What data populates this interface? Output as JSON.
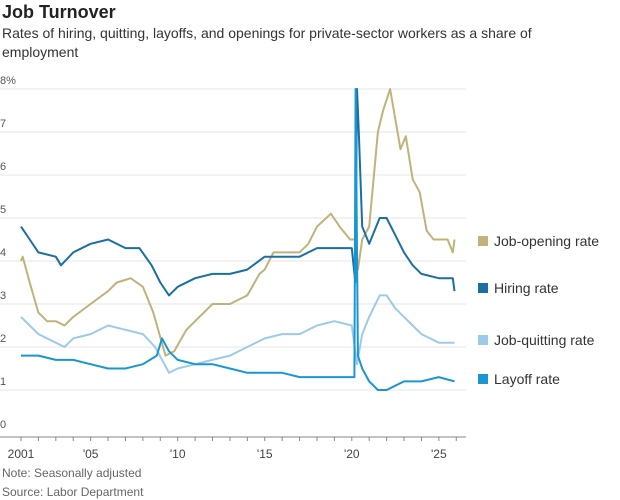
{
  "chart_data": {
    "type": "line",
    "title": "Job Turnover",
    "subtitle": "Rates of hiring, quitting, layoffs, and openings for private-sector workers as a share of employment",
    "ylabel": "%",
    "ylim": [
      0,
      8
    ],
    "yticks": [
      "0",
      "1",
      "2",
      "3",
      "4",
      "5",
      "6",
      "7",
      "8%"
    ],
    "xlim": [
      2001,
      2026.1
    ],
    "xticks": [
      {
        "value": 2001,
        "label": "2001"
      },
      {
        "value": 2005,
        "label": "'05"
      },
      {
        "value": 2010,
        "label": "'10"
      },
      {
        "value": 2015,
        "label": "'15"
      },
      {
        "value": 2020,
        "label": "'20"
      },
      {
        "value": 2025,
        "label": "'25"
      }
    ],
    "grid": true,
    "legend": "right",
    "series": [
      {
        "name": "Job-opening rate",
        "color": "#bfb37a",
        "points": [
          [
            2001,
            4.0
          ],
          [
            2001.1,
            4.1
          ],
          [
            2001.5,
            3.5
          ],
          [
            2002,
            2.8
          ],
          [
            2002.5,
            2.6
          ],
          [
            2003,
            2.6
          ],
          [
            2003.5,
            2.5
          ],
          [
            2004,
            2.7
          ],
          [
            2005,
            3.0
          ],
          [
            2006,
            3.3
          ],
          [
            2006.5,
            3.5
          ],
          [
            2007.3,
            3.6
          ],
          [
            2008,
            3.4
          ],
          [
            2008.6,
            2.8
          ],
          [
            2009.3,
            1.8
          ],
          [
            2009.8,
            1.9
          ],
          [
            2010.5,
            2.4
          ],
          [
            2011,
            2.6
          ],
          [
            2012,
            3.0
          ],
          [
            2013,
            3.0
          ],
          [
            2014,
            3.2
          ],
          [
            2014.7,
            3.7
          ],
          [
            2015,
            3.8
          ],
          [
            2015.5,
            4.2
          ],
          [
            2016,
            4.2
          ],
          [
            2017,
            4.2
          ],
          [
            2017.5,
            4.4
          ],
          [
            2018,
            4.8
          ],
          [
            2018.8,
            5.1
          ],
          [
            2019.3,
            4.8
          ],
          [
            2019.9,
            4.5
          ],
          [
            2020.2,
            4.5
          ],
          [
            2020.35,
            3.8
          ],
          [
            2020.6,
            4.5
          ],
          [
            2021,
            4.8
          ],
          [
            2021.5,
            7.0
          ],
          [
            2021.8,
            7.5
          ],
          [
            2022.2,
            8.0
          ],
          [
            2022.5,
            7.3
          ],
          [
            2022.8,
            6.6
          ],
          [
            2023.1,
            6.9
          ],
          [
            2023.5,
            5.9
          ],
          [
            2023.9,
            5.6
          ],
          [
            2024.3,
            4.7
          ],
          [
            2024.7,
            4.5
          ],
          [
            2025,
            4.5
          ],
          [
            2025.5,
            4.5
          ],
          [
            2025.8,
            4.2
          ],
          [
            2025.9,
            4.5
          ]
        ]
      },
      {
        "name": "Hiring rate",
        "color": "#1a6fa3",
        "points": [
          [
            2001,
            4.8
          ],
          [
            2001.5,
            4.5
          ],
          [
            2002,
            4.2
          ],
          [
            2003,
            4.1
          ],
          [
            2003.3,
            3.9
          ],
          [
            2004,
            4.2
          ],
          [
            2005,
            4.4
          ],
          [
            2006,
            4.5
          ],
          [
            2007,
            4.3
          ],
          [
            2007.8,
            4.3
          ],
          [
            2008.5,
            3.9
          ],
          [
            2009,
            3.5
          ],
          [
            2009.5,
            3.2
          ],
          [
            2010,
            3.4
          ],
          [
            2011,
            3.6
          ],
          [
            2012,
            3.7
          ],
          [
            2013,
            3.7
          ],
          [
            2014,
            3.8
          ],
          [
            2015,
            4.1
          ],
          [
            2016,
            4.1
          ],
          [
            2017,
            4.1
          ],
          [
            2018,
            4.3
          ],
          [
            2019,
            4.3
          ],
          [
            2020,
            4.3
          ],
          [
            2020.2,
            3.5
          ],
          [
            2020.3,
            8.0
          ],
          [
            2020.4,
            7.0
          ],
          [
            2020.6,
            4.8
          ],
          [
            2021,
            4.4
          ],
          [
            2021.6,
            5.0
          ],
          [
            2022,
            5.0
          ],
          [
            2022.5,
            4.6
          ],
          [
            2023,
            4.2
          ],
          [
            2023.5,
            3.9
          ],
          [
            2024,
            3.7
          ],
          [
            2025,
            3.6
          ],
          [
            2025.8,
            3.6
          ],
          [
            2025.9,
            3.3
          ]
        ]
      },
      {
        "name": "Job-quitting rate",
        "color": "#9ccbe9",
        "points": [
          [
            2001,
            2.7
          ],
          [
            2001.5,
            2.5
          ],
          [
            2002,
            2.3
          ],
          [
            2003,
            2.1
          ],
          [
            2003.5,
            2.0
          ],
          [
            2004,
            2.2
          ],
          [
            2005,
            2.3
          ],
          [
            2006,
            2.5
          ],
          [
            2007,
            2.4
          ],
          [
            2008,
            2.3
          ],
          [
            2008.7,
            2.0
          ],
          [
            2009.5,
            1.4
          ],
          [
            2010,
            1.5
          ],
          [
            2011,
            1.6
          ],
          [
            2012,
            1.7
          ],
          [
            2013,
            1.8
          ],
          [
            2014,
            2.0
          ],
          [
            2015,
            2.2
          ],
          [
            2016,
            2.3
          ],
          [
            2017,
            2.3
          ],
          [
            2018,
            2.5
          ],
          [
            2019,
            2.6
          ],
          [
            2020,
            2.5
          ],
          [
            2020.3,
            1.6
          ],
          [
            2020.6,
            2.3
          ],
          [
            2021,
            2.7
          ],
          [
            2021.6,
            3.2
          ],
          [
            2022,
            3.2
          ],
          [
            2022.5,
            2.9
          ],
          [
            2023,
            2.7
          ],
          [
            2023.5,
            2.5
          ],
          [
            2024,
            2.3
          ],
          [
            2025,
            2.1
          ],
          [
            2025.9,
            2.1
          ]
        ]
      },
      {
        "name": "Layoff rate",
        "color": "#1a96d2",
        "points": [
          [
            2001,
            1.8
          ],
          [
            2002,
            1.8
          ],
          [
            2003,
            1.7
          ],
          [
            2004,
            1.7
          ],
          [
            2005,
            1.6
          ],
          [
            2006,
            1.5
          ],
          [
            2007,
            1.5
          ],
          [
            2008,
            1.6
          ],
          [
            2008.8,
            1.8
          ],
          [
            2009.1,
            2.2
          ],
          [
            2009.5,
            1.9
          ],
          [
            2010,
            1.7
          ],
          [
            2011,
            1.6
          ],
          [
            2012,
            1.6
          ],
          [
            2013,
            1.5
          ],
          [
            2014,
            1.4
          ],
          [
            2015,
            1.4
          ],
          [
            2016,
            1.4
          ],
          [
            2017,
            1.3
          ],
          [
            2018,
            1.3
          ],
          [
            2019,
            1.3
          ],
          [
            2020,
            1.3
          ],
          [
            2020.15,
            1.3
          ],
          [
            2020.22,
            8.0
          ],
          [
            2020.35,
            1.8
          ],
          [
            2020.6,
            1.5
          ],
          [
            2021,
            1.2
          ],
          [
            2021.5,
            1.0
          ],
          [
            2022,
            1.0
          ],
          [
            2022.5,
            1.1
          ],
          [
            2023,
            1.2
          ],
          [
            2024,
            1.2
          ],
          [
            2025,
            1.3
          ],
          [
            2025.9,
            1.2
          ]
        ]
      }
    ],
    "notes": [
      "Note: Seasonally adjusted",
      "Source: Labor Department"
    ]
  }
}
